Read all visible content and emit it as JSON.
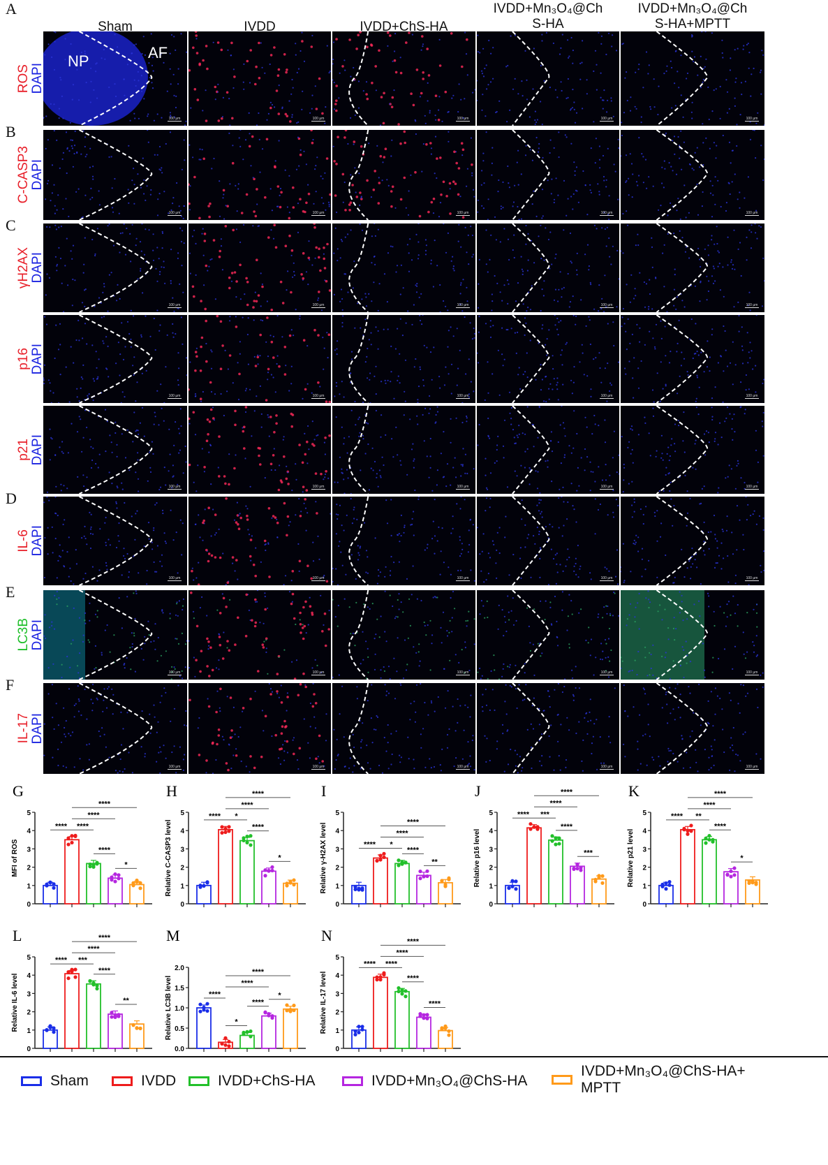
{
  "columns": [
    "Sham",
    "IVDD",
    "IVDD+ChS-HA",
    "IVDD+Mn3O4@ChS-HA",
    "IVDD+Mn3O4@ChS-HA+MPTT"
  ],
  "column_headers": [
    {
      "lines": [
        "Sham"
      ]
    },
    {
      "lines": [
        "IVDD"
      ]
    },
    {
      "lines": [
        "IVDD+ChS-HA"
      ]
    },
    {
      "lines": [
        "IVDD+Mn₃O₄@Ch",
        "S-HA"
      ]
    },
    {
      "lines": [
        "IVDD+Mn₃O₄@Ch",
        "S-HA+MPTT"
      ]
    }
  ],
  "rows": [
    {
      "letter": "A",
      "marker": "ROS",
      "marker_color": "#e8202a",
      "counter": "DAPI",
      "tint": "blue_red"
    },
    {
      "letter": "B",
      "marker": "C-CASP3",
      "marker_color": "#e8202a",
      "counter": "DAPI",
      "tint": "red"
    },
    {
      "letter": "C",
      "marker": "γH2AX",
      "marker_color": "#e8202a",
      "counter": "DAPI",
      "tint": "red"
    },
    {
      "letter": "",
      "marker": "p16",
      "marker_color": "#e8202a",
      "counter": "DAPI",
      "tint": "red"
    },
    {
      "letter": "",
      "marker": "p21",
      "marker_color": "#e8202a",
      "counter": "DAPI",
      "tint": "red"
    },
    {
      "letter": "D",
      "marker": "IL-6",
      "marker_color": "#e8202a",
      "counter": "DAPI",
      "tint": "red"
    },
    {
      "letter": "E",
      "marker": "LC3B",
      "marker_color": "#1fbf2a",
      "counter": "DAPI",
      "tint": "green"
    },
    {
      "letter": "F",
      "marker": "IL-17",
      "marker_color": "#e8202a",
      "counter": "DAPI",
      "tint": "red"
    }
  ],
  "dapi_color": "#1a22e0",
  "region_labels": {
    "np": "NP",
    "af": "AF"
  },
  "scale_bar": "100 μm",
  "group_colors": [
    "#1a2ee8",
    "#ee1c1c",
    "#22c02a",
    "#b526e0",
    "#ff9a1a"
  ],
  "legend": [
    {
      "label": "Sham"
    },
    {
      "label": "IVDD"
    },
    {
      "label": "IVDD+ChS-HA"
    },
    {
      "label": "IVDD+Mn₃O₄@ChS-HA"
    },
    {
      "label": "IVDD+Mn₃O₄@ChS-HA+",
      "label2": "MPTT"
    }
  ],
  "chart_data": [
    {
      "panel": "G",
      "type": "bar",
      "ylabel": "MFI of ROS",
      "ylim": [
        0,
        5
      ],
      "yticks": [
        "0",
        "1",
        "2",
        "3",
        "4",
        "5"
      ],
      "values": [
        1.0,
        3.5,
        2.2,
        1.4,
        1.05
      ],
      "significance": [
        {
          "pair": [
            0,
            1
          ],
          "label": "****"
        },
        {
          "pair": [
            1,
            2
          ],
          "label": "****"
        },
        {
          "pair": [
            1,
            3
          ],
          "label": "****"
        },
        {
          "pair": [
            1,
            4
          ],
          "label": "****"
        },
        {
          "pair": [
            2,
            3
          ],
          "label": "****"
        },
        {
          "pair": [
            3,
            4
          ],
          "label": "*"
        }
      ]
    },
    {
      "panel": "H",
      "type": "bar",
      "ylabel": "Relative C-CASP3 level",
      "ylim": [
        0,
        5
      ],
      "yticks": [
        "0",
        "1",
        "2",
        "3",
        "4",
        "5"
      ],
      "values": [
        1.0,
        4.05,
        3.45,
        1.78,
        1.12
      ],
      "significance": [
        {
          "pair": [
            0,
            1
          ],
          "label": "****"
        },
        {
          "pair": [
            1,
            2
          ],
          "label": "*"
        },
        {
          "pair": [
            1,
            3
          ],
          "label": "****"
        },
        {
          "pair": [
            1,
            4
          ],
          "label": "****"
        },
        {
          "pair": [
            2,
            3
          ],
          "label": "****"
        },
        {
          "pair": [
            3,
            4
          ],
          "label": "*"
        }
      ]
    },
    {
      "panel": "I",
      "type": "bar",
      "ylabel": "Relative γ-H2AX level",
      "ylim": [
        0,
        5
      ],
      "yticks": [
        "0",
        "1",
        "2",
        "3",
        "4",
        "5"
      ],
      "values": [
        1.0,
        2.5,
        2.2,
        1.55,
        1.15
      ],
      "significance": [
        {
          "pair": [
            0,
            1
          ],
          "label": "****"
        },
        {
          "pair": [
            1,
            2
          ],
          "label": "*"
        },
        {
          "pair": [
            1,
            3
          ],
          "label": "****"
        },
        {
          "pair": [
            1,
            4
          ],
          "label": "****"
        },
        {
          "pair": [
            2,
            3
          ],
          "label": "****"
        },
        {
          "pair": [
            3,
            4
          ],
          "label": "**"
        }
      ]
    },
    {
      "panel": "J",
      "type": "bar",
      "ylabel": "Relative p16 level",
      "ylim": [
        0,
        5
      ],
      "yticks": [
        "0",
        "1",
        "2",
        "3",
        "4",
        "5"
      ],
      "values": [
        1.0,
        4.15,
        3.48,
        2.05,
        1.35
      ],
      "significance": [
        {
          "pair": [
            0,
            1
          ],
          "label": "****"
        },
        {
          "pair": [
            1,
            2
          ],
          "label": "***"
        },
        {
          "pair": [
            1,
            3
          ],
          "label": "****"
        },
        {
          "pair": [
            1,
            4
          ],
          "label": "****"
        },
        {
          "pair": [
            2,
            3
          ],
          "label": "****"
        },
        {
          "pair": [
            3,
            4
          ],
          "label": "***"
        }
      ]
    },
    {
      "panel": "K",
      "type": "bar",
      "ylabel": "Relative p21 level",
      "ylim": [
        0,
        5
      ],
      "yticks": [
        "0",
        "1",
        "2",
        "3",
        "4",
        "5"
      ],
      "values": [
        1.0,
        4.05,
        3.5,
        1.75,
        1.3
      ],
      "significance": [
        {
          "pair": [
            0,
            1
          ],
          "label": "****"
        },
        {
          "pair": [
            1,
            2
          ],
          "label": "**"
        },
        {
          "pair": [
            1,
            3
          ],
          "label": "****"
        },
        {
          "pair": [
            1,
            4
          ],
          "label": "****"
        },
        {
          "pair": [
            2,
            3
          ],
          "label": "****"
        },
        {
          "pair": [
            3,
            4
          ],
          "label": "*"
        }
      ]
    },
    {
      "panel": "L",
      "type": "bar",
      "ylabel": "Relative IL-6 level",
      "ylim": [
        0,
        5
      ],
      "yticks": [
        "0",
        "1",
        "2",
        "3",
        "4",
        "5"
      ],
      "values": [
        1.0,
        4.08,
        3.52,
        1.87,
        1.33
      ],
      "significance": [
        {
          "pair": [
            0,
            1
          ],
          "label": "****"
        },
        {
          "pair": [
            1,
            2
          ],
          "label": "***"
        },
        {
          "pair": [
            1,
            3
          ],
          "label": "****"
        },
        {
          "pair": [
            1,
            4
          ],
          "label": "****"
        },
        {
          "pair": [
            2,
            3
          ],
          "label": "****"
        },
        {
          "pair": [
            3,
            4
          ],
          "label": "**"
        }
      ]
    },
    {
      "panel": "M",
      "type": "bar",
      "ylabel": "Relative LC3B level",
      "ylim": [
        0,
        2
      ],
      "yticks": [
        "0.0",
        "0.5",
        "1.0",
        "1.5",
        "2.0"
      ],
      "values": [
        1.0,
        0.15,
        0.32,
        0.8,
        0.97
      ],
      "significance": [
        {
          "pair": [
            0,
            1
          ],
          "label": "****"
        },
        {
          "pair": [
            1,
            2
          ],
          "label": "*"
        },
        {
          "pair": [
            1,
            3
          ],
          "label": "****"
        },
        {
          "pair": [
            1,
            4
          ],
          "label": "****"
        },
        {
          "pair": [
            2,
            3
          ],
          "label": "****"
        },
        {
          "pair": [
            3,
            4
          ],
          "label": "*"
        }
      ]
    },
    {
      "panel": "N",
      "type": "bar",
      "ylabel": "Relative IL-17 level",
      "ylim": [
        0,
        5
      ],
      "yticks": [
        "0",
        "1",
        "2",
        "3",
        "4",
        "5"
      ],
      "values": [
        1.0,
        3.88,
        3.1,
        1.7,
        0.97
      ],
      "significance": [
        {
          "pair": [
            0,
            1
          ],
          "label": "****"
        },
        {
          "pair": [
            1,
            2
          ],
          "label": "****"
        },
        {
          "pair": [
            1,
            3
          ],
          "label": "****"
        },
        {
          "pair": [
            1,
            4
          ],
          "label": "****"
        },
        {
          "pair": [
            2,
            3
          ],
          "label": "****"
        },
        {
          "pair": [
            3,
            4
          ],
          "label": "****"
        }
      ]
    }
  ]
}
